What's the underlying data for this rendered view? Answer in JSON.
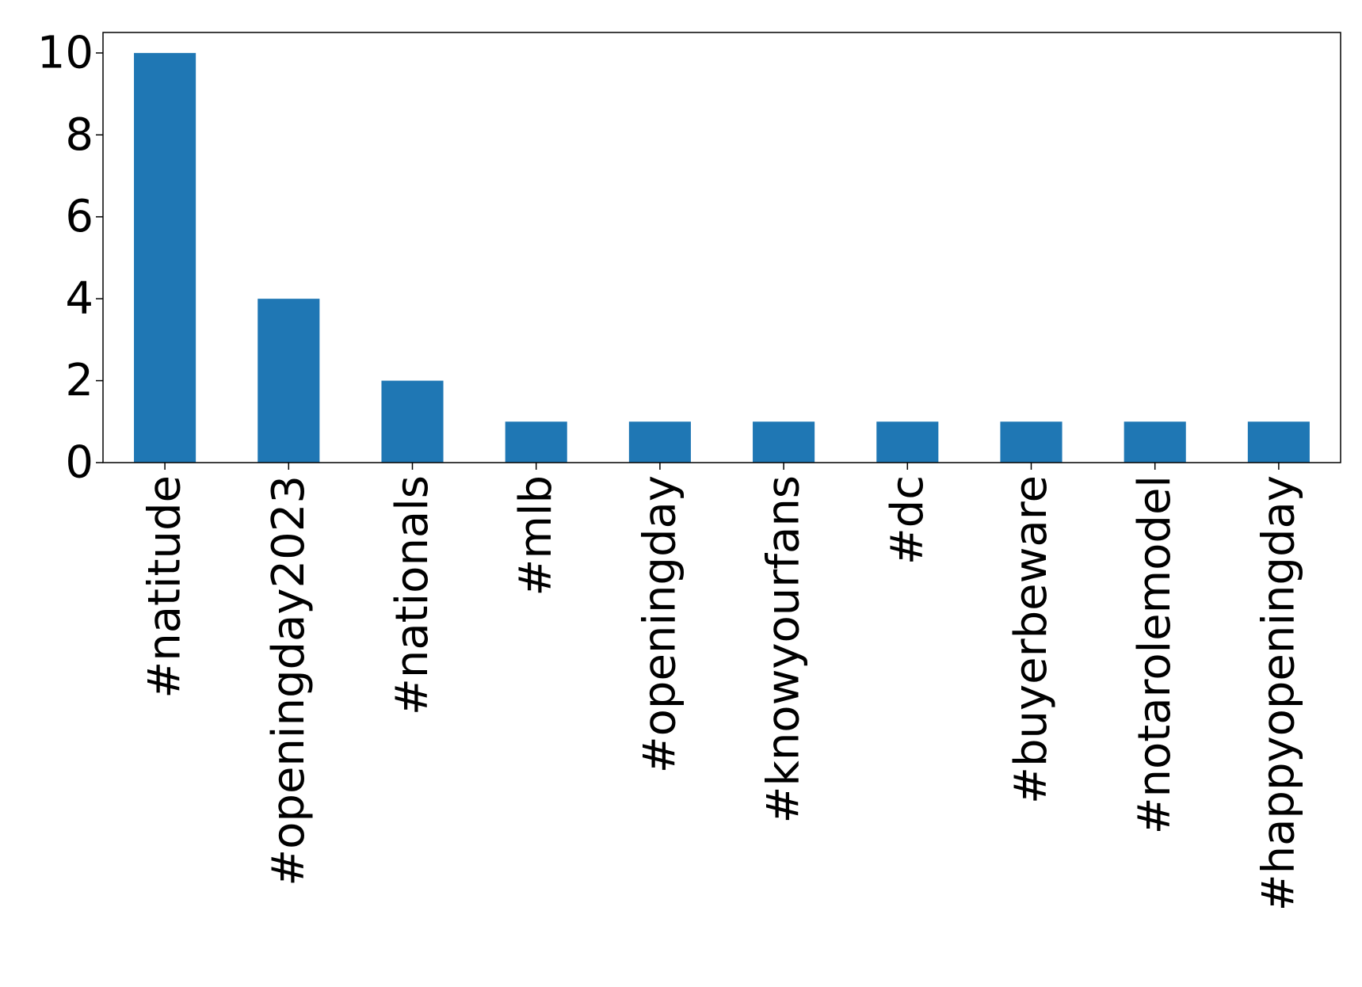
{
  "chart_data": {
    "type": "bar",
    "categories": [
      "#natitude",
      "#openingday2023",
      "#nationals",
      "#mlb",
      "#openingday",
      "#knowyourfans",
      "#dc",
      "#buyerbeware",
      "#notarolemodel",
      "#happyopeningday"
    ],
    "values": [
      10,
      4,
      2,
      1,
      1,
      1,
      1,
      1,
      1,
      1
    ],
    "title": "",
    "xlabel": "",
    "ylabel": "",
    "ylim": [
      0,
      10.5
    ],
    "yticks": [
      0,
      2,
      4,
      6,
      8,
      10
    ],
    "bar_color": "#1f77b4",
    "grid": false,
    "legend": "none"
  }
}
